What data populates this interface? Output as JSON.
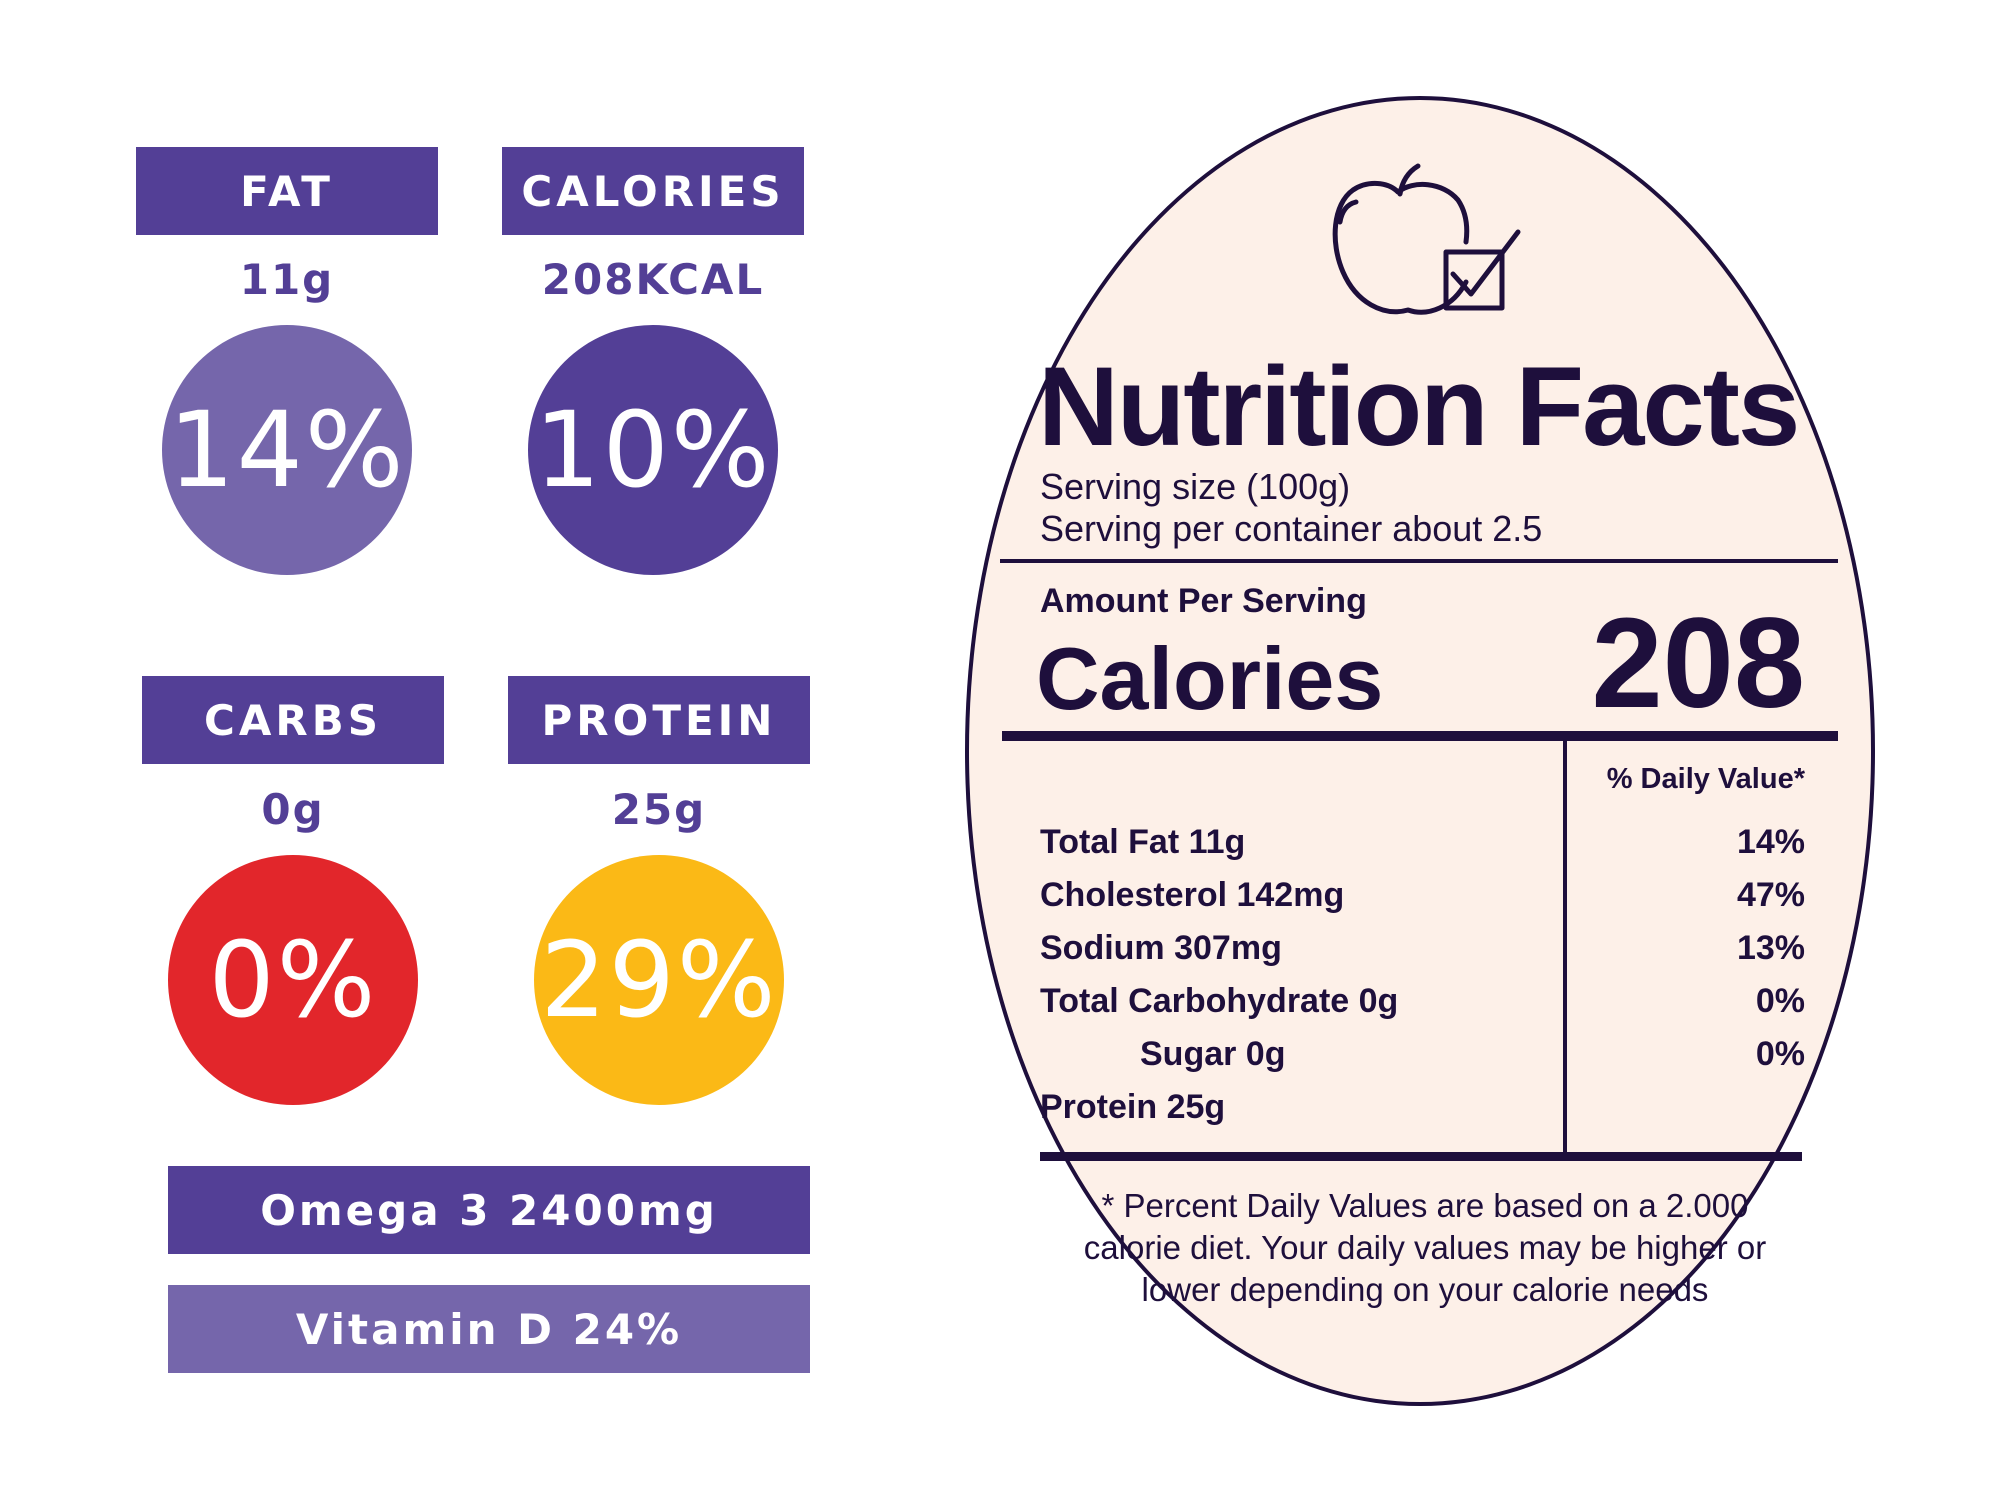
{
  "stats": [
    {
      "label": "FAT",
      "amount": "11g",
      "percent": "14%",
      "color": "#7566ab"
    },
    {
      "label": "CALORIES",
      "amount": "208KCAL",
      "percent": "10%",
      "color": "#533f96"
    },
    {
      "label": "CARBS",
      "amount": "0g",
      "percent": "0%",
      "color": "#e2262b"
    },
    {
      "label": "PROTEIN",
      "amount": "25g",
      "percent": "29%",
      "color": "#fbb916"
    }
  ],
  "extras": [
    {
      "text": "Omega 3 2400mg",
      "color": "#533f96"
    },
    {
      "text": "Vitamin D 24%",
      "color": "#7566ab"
    }
  ],
  "label": {
    "icon": "apple-check-icon",
    "title": "Nutrition Facts",
    "serving_size": "Serving size (100g)",
    "servings_per_container": "Serving per container about 2.5",
    "amount_per_serving": "Amount Per Serving",
    "calories_label": "Calories",
    "calories_value": "208",
    "daily_value_header": "% Daily Value*",
    "nutrients": [
      {
        "name": "Total Fat 11g",
        "dv": "14%"
      },
      {
        "name": "Cholesterol 142mg",
        "dv": "47%"
      },
      {
        "name": "Sodium 307mg",
        "dv": "13%"
      },
      {
        "name": "Total Carbohydrate 0g",
        "dv": "0%"
      },
      {
        "name": "Sugar 0g",
        "dv": "0%"
      },
      {
        "name": "Protein 25g",
        "dv": ""
      }
    ],
    "footnote": "* Percent Daily Values are based on a 2.000 calorie diet. Your daily values may be higher or lower depending on your calorie needs"
  },
  "colors": {
    "dark": "#1e0f3c",
    "purple": "#533f96",
    "light_purple": "#7566ab",
    "cream": "#fdf0e8"
  }
}
